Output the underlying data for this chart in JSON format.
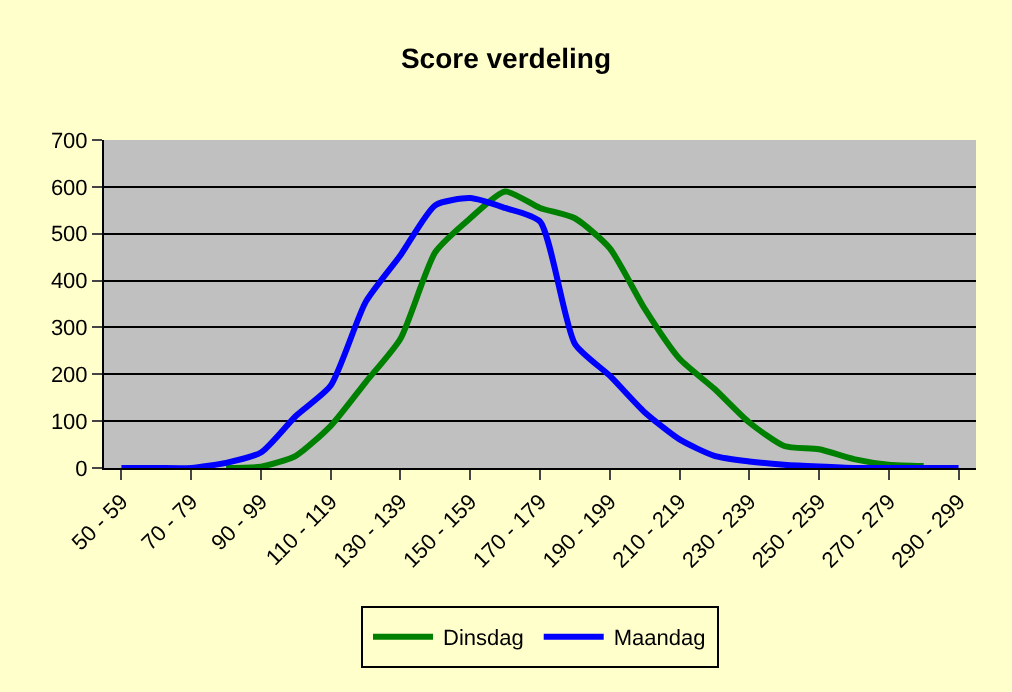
{
  "chart_data": {
    "type": "line",
    "title": "Score verdeling",
    "categories": [
      "50 - 59",
      null,
      "70 - 79",
      null,
      "90 - 99",
      null,
      "110 - 119",
      null,
      "130 - 139",
      null,
      "150 - 159",
      null,
      "170 - 179",
      null,
      "190 - 199",
      null,
      "210 - 219",
      null,
      "230 - 239",
      null,
      "250 - 259",
      null,
      "270 - 279",
      null,
      "290 - 299"
    ],
    "series": [
      {
        "name": "Dinsdag",
        "color": "#008000",
        "values": [
          null,
          null,
          null,
          0,
          3,
          26,
          90,
          183,
          276,
          461,
          533,
          590,
          555,
          533,
          469,
          340,
          233,
          169,
          97,
          47,
          40,
          19,
          7,
          4,
          null
        ]
      },
      {
        "name": "Maandag",
        "color": "#0000ff",
        "values": [
          0,
          0,
          0,
          11,
          33,
          111,
          176,
          354,
          454,
          561,
          576,
          555,
          526,
          265,
          197,
          119,
          61,
          26,
          14,
          7,
          3,
          0,
          0,
          0,
          0
        ]
      }
    ],
    "ylim": [
      0,
      700
    ],
    "yticks": [
      0,
      100,
      200,
      300,
      400,
      500,
      600,
      700
    ],
    "grid": "y",
    "legend": "bottom"
  }
}
